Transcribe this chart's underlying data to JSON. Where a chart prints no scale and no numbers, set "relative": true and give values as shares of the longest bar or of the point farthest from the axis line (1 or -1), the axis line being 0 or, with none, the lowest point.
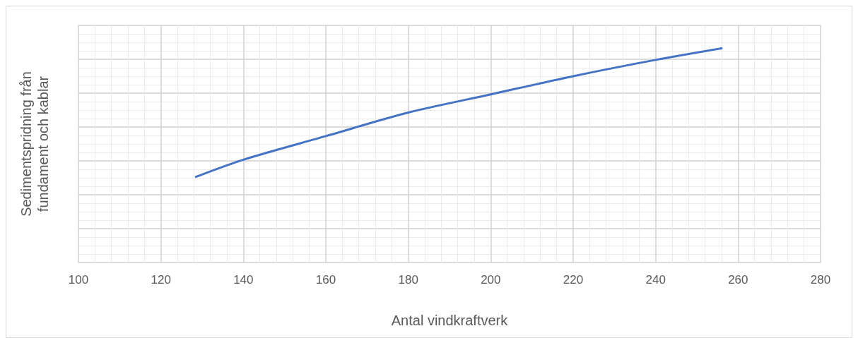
{
  "chart_data": {
    "type": "line",
    "xlabel": "Antal vindkraftverk",
    "ylabel": "Sedimentspridning från\nfundament och kablar",
    "relative": true,
    "x": [
      128.5,
      140,
      160,
      180,
      200,
      220,
      240,
      256
    ],
    "series": [
      {
        "color": "#4472c4",
        "values": [
          0.4,
          0.48,
          0.59,
          0.7,
          0.785,
          0.87,
          0.946,
          1
        ]
      }
    ],
    "xlim": [
      100,
      280
    ],
    "xticks": [
      100,
      120,
      140,
      160,
      180,
      200,
      220,
      240,
      260,
      280
    ],
    "grid": true,
    "marker": "none",
    "line_style": "solid"
  }
}
